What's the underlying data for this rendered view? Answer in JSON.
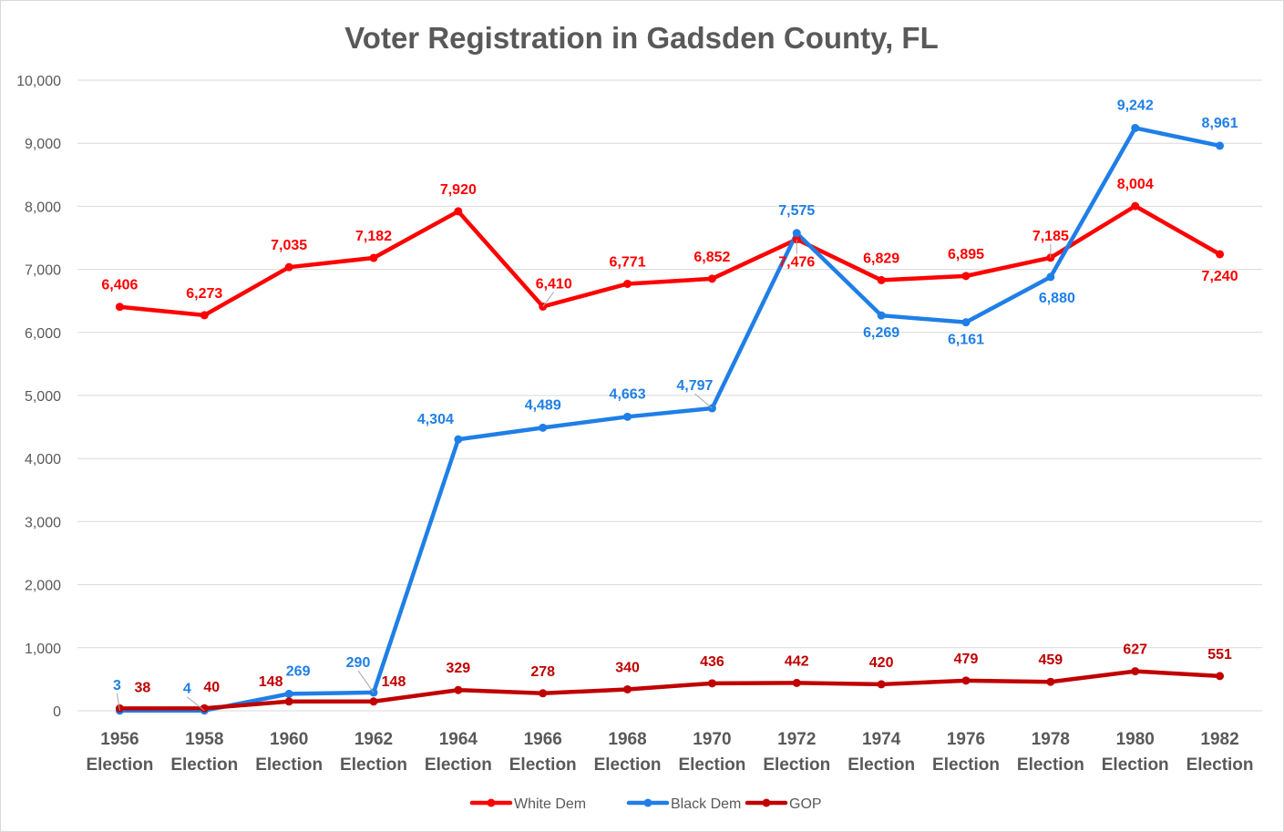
{
  "chart_data": {
    "type": "line",
    "title": "Voter Registration in Gadsden County, FL",
    "xlabel": "",
    "ylabel": "",
    "ylim": [
      0,
      10000
    ],
    "yticks": [
      "0",
      "1,000",
      "2,000",
      "3,000",
      "4,000",
      "5,000",
      "6,000",
      "7,000",
      "8,000",
      "9,000",
      "10,000"
    ],
    "categories": [
      [
        "1956",
        "Election"
      ],
      [
        "1958",
        "Election"
      ],
      [
        "1960",
        "Election"
      ],
      [
        "1962",
        "Election"
      ],
      [
        "1964",
        "Election"
      ],
      [
        "1966",
        "Election"
      ],
      [
        "1968",
        "Election"
      ],
      [
        "1970",
        "Election"
      ],
      [
        "1972",
        "Election"
      ],
      [
        "1974",
        "Election"
      ],
      [
        "1976",
        "Election"
      ],
      [
        "1978",
        "Election"
      ],
      [
        "1980",
        "Election"
      ],
      [
        "1982",
        "Election"
      ]
    ],
    "grid": true,
    "legend_position": "bottom",
    "series": [
      {
        "name": "White Dem",
        "color": "#ff0000",
        "values": [
          6406,
          6273,
          7035,
          7182,
          7920,
          6410,
          6771,
          6852,
          7476,
          6829,
          6895,
          7185,
          8004,
          7240
        ],
        "labels": [
          "6,406",
          "6,273",
          "7,035",
          "7,182",
          "7,920",
          "6,410",
          "6,771",
          "6,852",
          "7,476",
          "6,829",
          "6,895",
          "7,185",
          "8,004",
          "7,240"
        ]
      },
      {
        "name": "Black Dem",
        "color": "#1f7fe6",
        "values": [
          3,
          4,
          269,
          290,
          4304,
          4489,
          4663,
          4797,
          7575,
          6269,
          6161,
          6880,
          9242,
          8961
        ],
        "labels": [
          "3",
          "4",
          "269",
          "290",
          "4,304",
          "4,489",
          "4,663",
          "4,797",
          "7,575",
          "6,269",
          "6,161",
          "6,880",
          "9,242",
          "8,961"
        ]
      },
      {
        "name": "GOP",
        "color": "#c00000",
        "values": [
          38,
          40,
          148,
          148,
          329,
          278,
          340,
          436,
          442,
          420,
          479,
          459,
          627,
          551
        ],
        "labels": [
          "38",
          "40",
          "148",
          "148",
          "329",
          "278",
          "340",
          "436",
          "442",
          "420",
          "479",
          "459",
          "627",
          "551"
        ]
      }
    ]
  }
}
